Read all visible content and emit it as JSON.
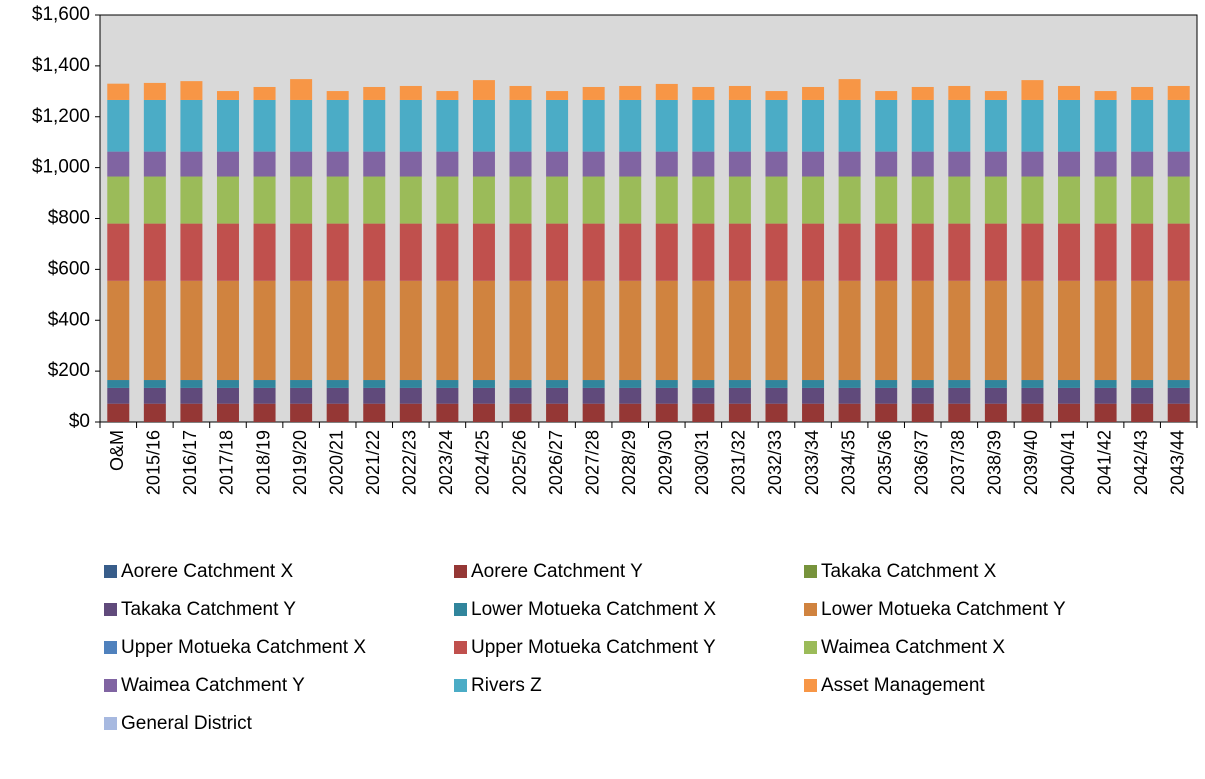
{
  "chart_data": {
    "type": "stacked_bar",
    "categories": [
      "O&M",
      "2015/16",
      "2016/17",
      "2017/18",
      "2018/19",
      "2019/20",
      "2020/21",
      "2021/22",
      "2022/23",
      "2023/24",
      "2024/25",
      "2025/26",
      "2026/27",
      "2027/28",
      "2028/29",
      "2029/30",
      "2030/31",
      "2031/32",
      "2032/33",
      "2033/34",
      "2034/35",
      "2035/36",
      "2036/37",
      "2037/38",
      "2038/39",
      "2039/40",
      "2040/41",
      "2041/42",
      "2042/43",
      "2043/44"
    ],
    "series": [
      {
        "name": "Aorere Catchment X",
        "color": "#385d8a",
        "values": [
          0,
          0,
          0,
          0,
          0,
          0,
          0,
          0,
          0,
          0,
          0,
          0,
          0,
          0,
          0,
          0,
          0,
          0,
          0,
          0,
          0,
          0,
          0,
          0,
          0,
          0,
          0,
          0,
          0,
          0
        ]
      },
      {
        "name": "Aorere Catchment Y",
        "color": "#953735",
        "values": [
          72,
          72,
          72,
          72,
          72,
          72,
          72,
          72,
          72,
          72,
          72,
          72,
          72,
          72,
          72,
          72,
          72,
          72,
          72,
          72,
          72,
          72,
          72,
          72,
          72,
          72,
          72,
          72,
          72,
          72
        ]
      },
      {
        "name": "Takaka Catchment X",
        "color": "#77933c",
        "values": [
          0,
          0,
          0,
          0,
          0,
          0,
          0,
          0,
          0,
          0,
          0,
          0,
          0,
          0,
          0,
          0,
          0,
          0,
          0,
          0,
          0,
          0,
          0,
          0,
          0,
          0,
          0,
          0,
          0,
          0
        ]
      },
      {
        "name": "Takaka Catchment Y",
        "color": "#604a7b",
        "values": [
          62,
          62,
          62,
          62,
          62,
          62,
          62,
          62,
          62,
          62,
          62,
          62,
          62,
          62,
          62,
          62,
          62,
          62,
          62,
          62,
          62,
          62,
          62,
          62,
          62,
          62,
          62,
          62,
          62,
          62
        ]
      },
      {
        "name": "Lower Motueka Catchment X",
        "color": "#31859c",
        "values": [
          31,
          31,
          31,
          31,
          31,
          31,
          31,
          31,
          31,
          31,
          31,
          31,
          31,
          31,
          31,
          31,
          31,
          31,
          31,
          31,
          31,
          31,
          31,
          31,
          31,
          31,
          31,
          31,
          31,
          31
        ]
      },
      {
        "name": "Lower Motueka Catchment Y",
        "color": "#d0833f",
        "values": [
          390,
          390,
          390,
          390,
          390,
          390,
          390,
          390,
          390,
          390,
          390,
          390,
          390,
          390,
          390,
          390,
          390,
          390,
          390,
          390,
          390,
          390,
          390,
          390,
          390,
          390,
          390,
          390,
          390,
          390
        ]
      },
      {
        "name": "Upper Motueka Catchment X",
        "color": "#4f81bd",
        "values": [
          0,
          0,
          0,
          0,
          0,
          0,
          0,
          0,
          0,
          0,
          0,
          0,
          0,
          0,
          0,
          0,
          0,
          0,
          0,
          0,
          0,
          0,
          0,
          0,
          0,
          0,
          0,
          0,
          0,
          0
        ]
      },
      {
        "name": "Upper Motueka Catchment Y",
        "color": "#c0504d",
        "values": [
          225,
          225,
          225,
          225,
          225,
          225,
          225,
          225,
          225,
          225,
          225,
          225,
          225,
          225,
          225,
          225,
          225,
          225,
          225,
          225,
          225,
          225,
          225,
          225,
          225,
          225,
          225,
          225,
          225,
          225
        ]
      },
      {
        "name": "Waimea Catchment X",
        "color": "#9bbb59",
        "values": [
          185,
          185,
          185,
          185,
          185,
          185,
          185,
          185,
          185,
          185,
          185,
          185,
          185,
          185,
          185,
          185,
          185,
          185,
          185,
          185,
          185,
          185,
          185,
          185,
          185,
          185,
          185,
          185,
          185,
          185
        ]
      },
      {
        "name": "Waimea Catchment Y",
        "color": "#8064a2",
        "values": [
          98,
          98,
          98,
          98,
          98,
          98,
          98,
          98,
          98,
          98,
          98,
          98,
          98,
          98,
          98,
          98,
          98,
          98,
          98,
          98,
          98,
          98,
          98,
          98,
          98,
          98,
          98,
          98,
          98,
          98
        ]
      },
      {
        "name": "Rivers Z",
        "color": "#4bacc6",
        "values": [
          203,
          203,
          203,
          203,
          203,
          203,
          203,
          203,
          203,
          203,
          203,
          203,
          203,
          203,
          203,
          203,
          203,
          203,
          203,
          203,
          203,
          203,
          203,
          203,
          203,
          203,
          203,
          203,
          203,
          203
        ]
      },
      {
        "name": "Asset Management",
        "color": "#f79646",
        "values": [
          64,
          67,
          74,
          35,
          51,
          82,
          35,
          51,
          55,
          35,
          78,
          55,
          35,
          51,
          55,
          63,
          51,
          55,
          35,
          51,
          82,
          35,
          51,
          55,
          35,
          78,
          55,
          35,
          51,
          55
        ]
      },
      {
        "name": "General District",
        "color": "#a7b9e0",
        "values": [
          0,
          0,
          0,
          0,
          0,
          0,
          0,
          0,
          0,
          0,
          0,
          0,
          0,
          0,
          0,
          0,
          0,
          0,
          0,
          0,
          0,
          0,
          0,
          0,
          0,
          0,
          0,
          0,
          0,
          0
        ]
      }
    ],
    "ylim": [
      0,
      1600
    ],
    "yticks": [
      {
        "value": 0,
        "label": "$0"
      },
      {
        "value": 200,
        "label": "$200"
      },
      {
        "value": 400,
        "label": "$400"
      },
      {
        "value": 600,
        "label": "$600"
      },
      {
        "value": 800,
        "label": "$800"
      },
      {
        "value": 1000,
        "label": "$1,000"
      },
      {
        "value": 1200,
        "label": "$1,200"
      },
      {
        "value": 1400,
        "label": "$1,400"
      },
      {
        "value": 1600,
        "label": "$1,600"
      }
    ]
  }
}
